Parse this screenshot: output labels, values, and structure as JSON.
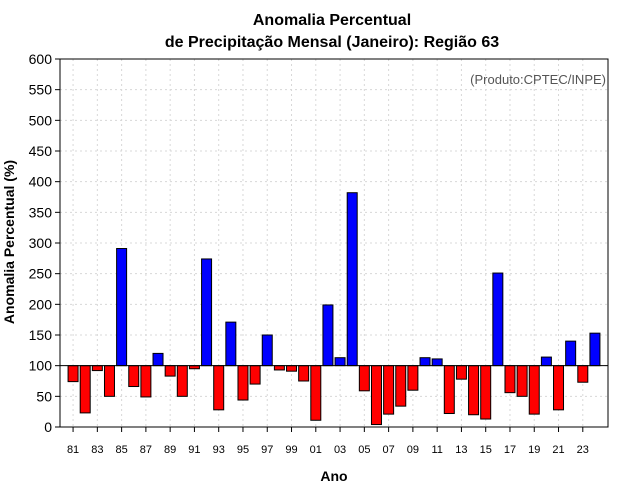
{
  "chart_data": {
    "type": "bar",
    "title": "Anomalia Percentual",
    "subtitle": "de Precipitação Mensal (Janeiro): Região 63",
    "xlabel": "Ano",
    "ylabel": "Anomalia Percentual (%)",
    "annotation": "(Produto:CPTEC/INPE)",
    "baseline": 100,
    "ylim": [
      0,
      600
    ],
    "yticks": [
      0,
      50,
      100,
      150,
      200,
      250,
      300,
      350,
      400,
      450,
      500,
      550,
      600
    ],
    "grid": true,
    "colors": {
      "above": "#0000ff",
      "below": "#ff0000",
      "frame": "#000000",
      "grid": "#d8d8d8"
    },
    "categories": [
      "81",
      "82",
      "83",
      "84",
      "85",
      "86",
      "87",
      "88",
      "89",
      "90",
      "91",
      "92",
      "93",
      "94",
      "95",
      "96",
      "97",
      "98",
      "99",
      "00",
      "01",
      "02",
      "03",
      "04",
      "05",
      "06",
      "07",
      "08",
      "09",
      "10",
      "11",
      "12",
      "13",
      "14",
      "15",
      "16",
      "17",
      "18",
      "19",
      "20",
      "21",
      "22",
      "23",
      "24"
    ],
    "values": [
      74,
      23,
      92,
      50,
      291,
      66,
      49,
      120,
      83,
      50,
      95,
      274,
      28,
      171,
      44,
      70,
      150,
      93,
      91,
      75,
      11,
      199,
      113,
      382,
      59,
      4,
      21,
      34,
      60,
      113,
      111,
      22,
      78,
      20,
      13,
      251,
      56,
      50,
      21,
      114,
      28,
      140,
      73,
      153
    ],
    "xtick_labels": [
      "81",
      "83",
      "85",
      "87",
      "89",
      "91",
      "93",
      "95",
      "97",
      "99",
      "01",
      "03",
      "05",
      "07",
      "09",
      "11",
      "13",
      "15",
      "17",
      "19",
      "21",
      "23"
    ]
  }
}
